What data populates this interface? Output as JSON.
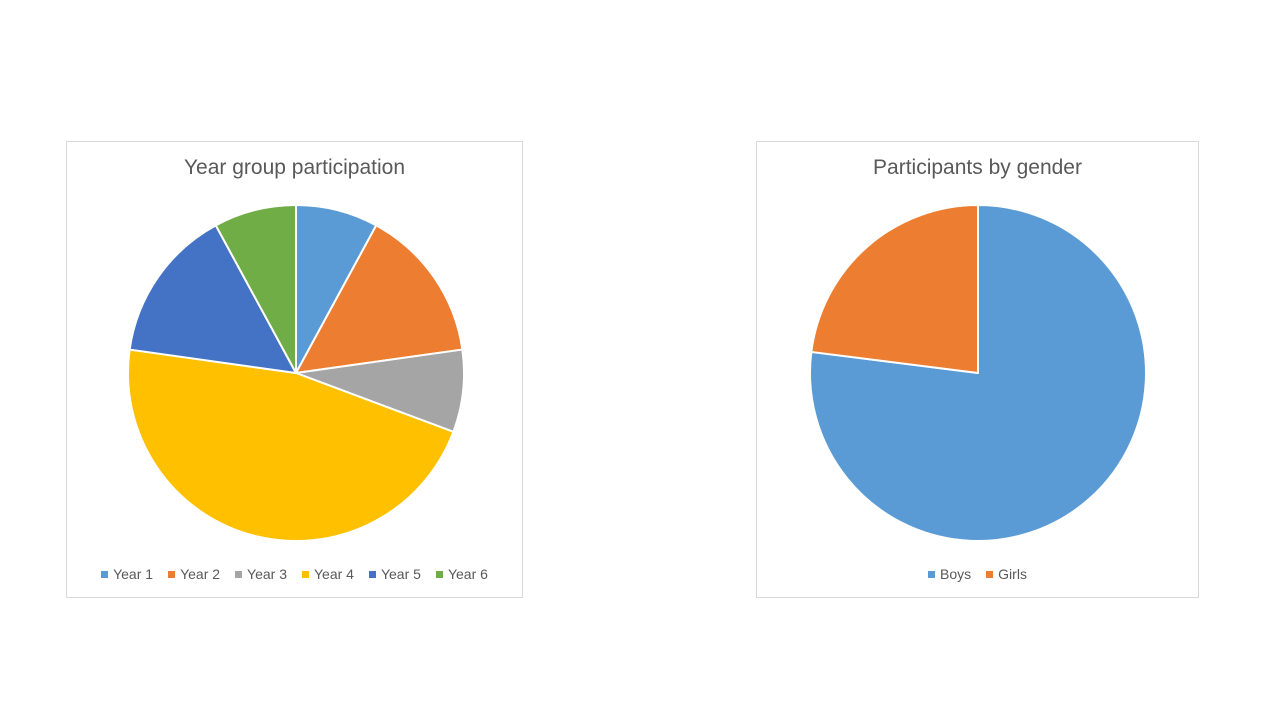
{
  "chart_data": [
    {
      "type": "pie",
      "title": "Year group participation",
      "categories": [
        "Year 1",
        "Year 2",
        "Year 3",
        "Year 4",
        "Year 5",
        "Year 6"
      ],
      "values": [
        8,
        15,
        8,
        47,
        15,
        8
      ],
      "colors": [
        "#5B9BD5",
        "#ED7D31",
        "#A5A5A5",
        "#FFC000",
        "#4472C4",
        "#70AD47"
      ],
      "legend_position": "bottom"
    },
    {
      "type": "pie",
      "title": "Participants by gender",
      "categories": [
        "Boys",
        "Girls"
      ],
      "values": [
        77,
        23
      ],
      "colors": [
        "#5B9BD5",
        "#ED7D31"
      ],
      "legend_position": "bottom"
    }
  ]
}
